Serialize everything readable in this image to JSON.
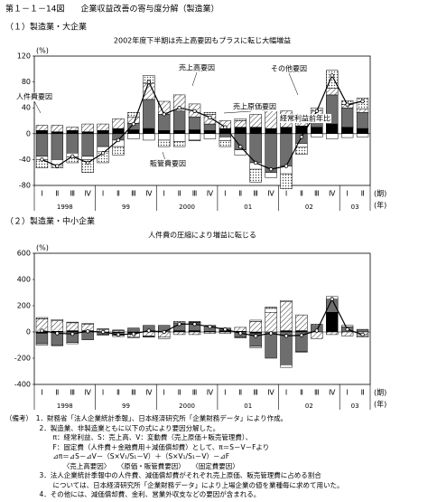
{
  "header": "第１－１－14図　　企業収益改善の寄与度分解（製造業）",
  "chart_data": [
    {
      "type": "stacked-bar-line",
      "subtitle": "（１）製造業・大企業",
      "title": "2002年度下半期は売上高要因もプラスに転じ大幅増益",
      "y_unit": "(%)",
      "period_label": "(期)",
      "year_label": "(年)",
      "categories": [
        "Ⅰ",
        "Ⅱ",
        "Ⅲ",
        "Ⅳ",
        "Ⅰ",
        "Ⅱ",
        "Ⅲ",
        "Ⅳ",
        "Ⅰ",
        "Ⅱ",
        "Ⅲ",
        "Ⅳ",
        "Ⅰ",
        "Ⅱ",
        "Ⅲ",
        "Ⅳ",
        "Ⅰ",
        "Ⅱ",
        "Ⅲ",
        "Ⅳ",
        "Ⅰ",
        "Ⅱ"
      ],
      "years": [
        "1998",
        "99",
        "2000",
        "01",
        "02",
        "03"
      ],
      "ylim": [
        -80,
        120
      ],
      "yticks": [
        -80,
        -40,
        0,
        40,
        80,
        120
      ],
      "series": [
        {
          "name": "人件費要因",
          "color": "#000000",
          "values": [
            5,
            3,
            5,
            3,
            5,
            8,
            6,
            8,
            5,
            5,
            6,
            5,
            8,
            10,
            10,
            8,
            10,
            12,
            10,
            15,
            10,
            8
          ]
        },
        {
          "name": "売上高要因",
          "color": "#6e6e6e",
          "values": [
            -35,
            -40,
            -30,
            -35,
            -20,
            -10,
            10,
            45,
            25,
            30,
            20,
            10,
            -5,
            -25,
            -45,
            -60,
            -50,
            -15,
            15,
            45,
            30,
            25
          ]
        },
        {
          "name": "売上原価要因",
          "color": "#555555",
          "pattern": "hatch",
          "values": [
            8,
            10,
            5,
            12,
            10,
            15,
            10,
            25,
            20,
            25,
            20,
            15,
            12,
            10,
            20,
            30,
            25,
            15,
            10,
            10,
            5,
            5
          ]
        },
        {
          "name": "販管費要因",
          "color": "#ffffff",
          "values": [
            -5,
            -8,
            -6,
            -5,
            -8,
            -10,
            -8,
            -10,
            -10,
            -12,
            -10,
            -8,
            -6,
            -8,
            -10,
            -8,
            -12,
            -6,
            -5,
            -8,
            -6,
            -5
          ]
        },
        {
          "name": "その他要因",
          "color": "#999999",
          "pattern": "dots",
          "values": [
            -13,
            -5,
            -9,
            -20,
            -17,
            -13,
            7,
            12,
            -10,
            -8,
            -1,
            3,
            -9,
            3,
            -20,
            5,
            -23,
            -11,
            5,
            28,
            6,
            17
          ]
        }
      ],
      "line": {
        "name": "経常利益前年比",
        "color": "#000000",
        "values": [
          -40,
          -50,
          -35,
          -45,
          -30,
          -10,
          15,
          80,
          30,
          40,
          35,
          25,
          10,
          -20,
          -45,
          -55,
          -50,
          -5,
          35,
          90,
          45,
          50
        ]
      }
    },
    {
      "type": "stacked-bar-line",
      "subtitle": "（２）製造業・中小企業",
      "title": "人件費の圧縮により増益に転じる",
      "y_unit": "(%)",
      "period_label": "(期)",
      "year_label": "(年)",
      "categories": [
        "Ⅰ",
        "Ⅱ",
        "Ⅲ",
        "Ⅳ",
        "Ⅰ",
        "Ⅱ",
        "Ⅲ",
        "Ⅳ",
        "Ⅰ",
        "Ⅱ",
        "Ⅲ",
        "Ⅳ",
        "Ⅰ",
        "Ⅱ",
        "Ⅲ",
        "Ⅳ",
        "Ⅰ",
        "Ⅱ",
        "Ⅲ",
        "Ⅳ",
        "Ⅰ",
        "Ⅱ"
      ],
      "years": [
        "1998",
        "99",
        "2000",
        "01",
        "02",
        "03"
      ],
      "ylim": [
        -400,
        600
      ],
      "yticks": [
        -400,
        -200,
        0,
        200,
        400,
        600
      ],
      "series": [
        {
          "color": "#000000",
          "values": [
            -10,
            5,
            10,
            10,
            0,
            -5,
            -10,
            0,
            0,
            10,
            10,
            5,
            10,
            5,
            -10,
            0,
            10,
            10,
            0,
            150,
            0,
            0
          ]
        },
        {
          "color": "#6e6e6e",
          "values": [
            -80,
            -100,
            -80,
            -60,
            -20,
            -20,
            30,
            50,
            50,
            60,
            60,
            40,
            20,
            -40,
            -100,
            -200,
            -250,
            -150,
            50,
            100,
            40,
            20
          ]
        },
        {
          "color": "#555555",
          "pattern": "hatch",
          "values": [
            100,
            80,
            60,
            50,
            20,
            10,
            -30,
            -30,
            -40,
            -20,
            -20,
            -10,
            -10,
            30,
            80,
            150,
            220,
            120,
            -50,
            -20,
            -30,
            -20
          ]
        },
        {
          "color": "#ffffff",
          "values": [
            -10,
            -5,
            -10,
            0,
            -5,
            5,
            -5,
            -5,
            -10,
            0,
            5,
            0,
            0,
            0,
            10,
            30,
            -20,
            0,
            0,
            20,
            10,
            -10
          ]
        },
        {
          "color": "#999999",
          "pattern": "dots",
          "values": [
            10,
            10,
            5,
            5,
            5,
            -10,
            0,
            -5,
            0,
            10,
            5,
            5,
            0,
            -5,
            -10,
            10,
            10,
            -5,
            10,
            0,
            0,
            -10
          ]
        }
      ],
      "line": {
        "color": "#000000",
        "values": [
          10,
          -10,
          -15,
          5,
          0,
          -20,
          -15,
          10,
          0,
          60,
          60,
          40,
          20,
          -10,
          -30,
          -10,
          -30,
          -25,
          10,
          250,
          20,
          -20
        ]
      }
    }
  ],
  "notes": [
    "（備考）　1．財務省「法人企業統計季報」、日本経済研究所「企業財務データ」により作成。",
    "　　　　　2．製造業、非製造業ともに以下の式により要因分解した。",
    "　　　　　　　π：経常利益、S：売上高、V：変動費（売上原価＋販売管理費）、",
    "　　　　　　　F：固定費（人件費＋金融費用＋減価償却費）として、π＝S－V－Fより",
    "　　　　　　　⊿π＝⊿S－⊿V－（S×V₁/S₁－V）＋（S×V₁/S₁－V）－⊿F",
    "　　　　　　　　　〈売上高要因〉　　〈原価・販管費要因〉　　〈固定費要因〉",
    "　　　　　3．法人企業統計季報中の人件費、減価償却費がそれぞれ売上原価、販売管理費に占める割合",
    "　　　　　　　については、日本経済研究所「企業財務データ」により上場企業の値を業種毎に求めて用いた。",
    "　　　　　4．その他には、減価償却費、金利、営業外収支などの要因が含まれる。"
  ]
}
